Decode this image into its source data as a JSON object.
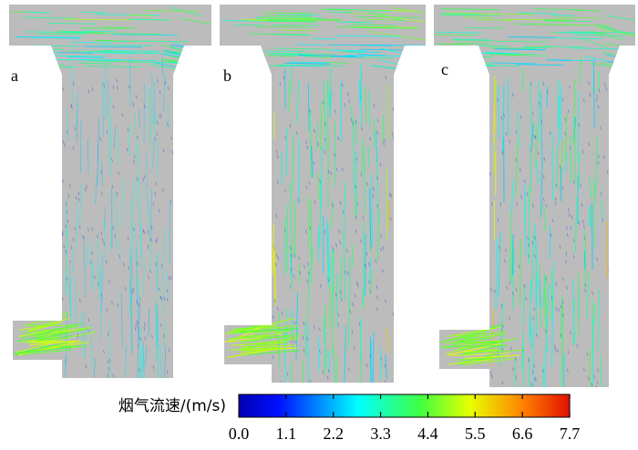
{
  "panels": [
    {
      "label": "a"
    },
    {
      "label": "b"
    },
    {
      "label": "c"
    }
  ],
  "colorbar": {
    "label": "烟气流速/(m/s)",
    "lim": [
      0,
      7.7
    ],
    "ticks": [
      {
        "value": 0,
        "label": "0.0"
      },
      1.1,
      2.2,
      3.3,
      4.4,
      5.5,
      6.6,
      7.7
    ]
  }
}
